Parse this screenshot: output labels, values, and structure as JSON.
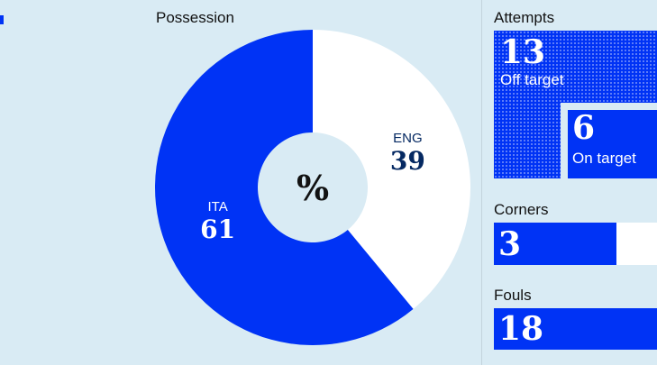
{
  "chart_data": [
    {
      "type": "pie",
      "title": "Possession",
      "center_label": "%",
      "categories": [
        "ENG",
        "ITA"
      ],
      "values": [
        39,
        61
      ],
      "colors": {
        "ENG": "#ffffff",
        "ITA": "#0033f5"
      }
    },
    {
      "type": "bar",
      "title": "Attempts",
      "total": 13,
      "total_label": "Off target",
      "on_target": 6,
      "on_target_label": "On target"
    },
    {
      "type": "bar",
      "title": "Corners",
      "value": 3,
      "max": 4
    },
    {
      "type": "bar",
      "title": "Fouls",
      "value": 18,
      "max": 18
    }
  ],
  "colors": {
    "accent": "#0033f5",
    "background": "#d9ebf4",
    "text": "#121212"
  }
}
